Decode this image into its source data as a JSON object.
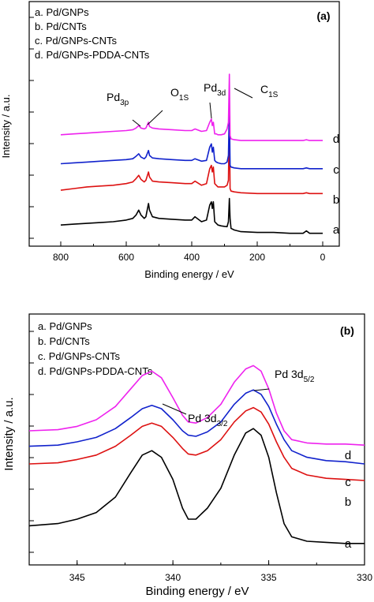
{
  "chart_data": [
    {
      "panel": "(a)",
      "type": "line",
      "xlabel": "Binding energy / eV",
      "ylabel": "Intensity / a.u.",
      "xlim": [
        800,
        0
      ],
      "x_reversed": true,
      "x_ticks": [
        "800",
        "600",
        "400",
        "200",
        "0"
      ],
      "legend": [
        "a. Pd/GNPs",
        "b. Pd/CNTs",
        "c. Pd/GNPs-CNTs",
        "d. Pd/GNPs-PDDA-CNTs"
      ],
      "legend_position": "top-left",
      "peak_labels": [
        {
          "text": "Pd",
          "sub": "3p",
          "x": 562
        },
        {
          "text": "O",
          "sub": "1S",
          "x": 531
        },
        {
          "text": "Pd",
          "sub": "3d",
          "x": 338
        },
        {
          "text": "C",
          "sub": "1S",
          "x": 285
        }
      ],
      "series": [
        {
          "name": "a",
          "color": "#000000",
          "baseline": 0.03,
          "x": [
            800,
            760,
            720,
            680,
            640,
            600,
            580,
            570,
            562,
            555,
            545,
            540,
            532,
            529,
            520,
            500,
            460,
            420,
            400,
            390,
            370,
            355,
            345,
            340,
            337,
            334,
            330,
            325,
            320,
            310,
            300,
            292,
            288,
            285,
            283,
            280,
            270,
            250,
            200,
            150,
            100,
            60,
            50,
            40,
            20,
            0
          ],
          "y": [
            0.08,
            0.085,
            0.09,
            0.095,
            0.1,
            0.11,
            0.12,
            0.14,
            0.17,
            0.14,
            0.12,
            0.13,
            0.21,
            0.17,
            0.13,
            0.12,
            0.115,
            0.11,
            0.11,
            0.13,
            0.1,
            0.11,
            0.2,
            0.22,
            0.18,
            0.22,
            0.1,
            0.09,
            0.08,
            0.075,
            0.072,
            0.07,
            0.1,
            0.24,
            0.12,
            0.06,
            0.05,
            0.04,
            0.035,
            0.035,
            0.03,
            0.03,
            0.045,
            0.03,
            0.03,
            0.03
          ]
        },
        {
          "name": "b",
          "color": "#dd1111",
          "baseline": 0.27,
          "x": [
            800,
            760,
            720,
            680,
            640,
            600,
            580,
            570,
            562,
            555,
            545,
            540,
            532,
            529,
            520,
            500,
            460,
            420,
            400,
            390,
            370,
            355,
            345,
            340,
            337,
            334,
            330,
            325,
            320,
            310,
            300,
            292,
            288,
            285,
            283,
            280,
            270,
            250,
            200,
            150,
            100,
            60,
            50,
            40,
            20,
            0
          ],
          "y": [
            0.29,
            0.3,
            0.31,
            0.315,
            0.32,
            0.33,
            0.34,
            0.36,
            0.38,
            0.355,
            0.34,
            0.35,
            0.4,
            0.37,
            0.345,
            0.34,
            0.335,
            0.33,
            0.33,
            0.345,
            0.32,
            0.33,
            0.42,
            0.44,
            0.4,
            0.43,
            0.33,
            0.32,
            0.31,
            0.31,
            0.31,
            0.32,
            0.35,
            0.75,
            0.3,
            0.285,
            0.28,
            0.275,
            0.27,
            0.27,
            0.27,
            0.27,
            0.275,
            0.27,
            0.27,
            0.27
          ]
        },
        {
          "name": "c",
          "color": "#1122cc",
          "baseline": 0.42,
          "x": [
            800,
            760,
            720,
            680,
            640,
            600,
            580,
            570,
            562,
            555,
            545,
            540,
            532,
            529,
            520,
            500,
            460,
            420,
            400,
            390,
            370,
            355,
            345,
            340,
            337,
            334,
            330,
            325,
            320,
            310,
            300,
            292,
            288,
            285,
            283,
            280,
            270,
            250,
            200,
            150,
            100,
            60,
            50,
            40,
            20,
            0
          ],
          "y": [
            0.45,
            0.455,
            0.46,
            0.465,
            0.47,
            0.475,
            0.48,
            0.495,
            0.51,
            0.49,
            0.48,
            0.49,
            0.53,
            0.5,
            0.485,
            0.48,
            0.475,
            0.47,
            0.47,
            0.48,
            0.465,
            0.47,
            0.55,
            0.57,
            0.52,
            0.55,
            0.47,
            0.46,
            0.455,
            0.45,
            0.45,
            0.46,
            0.5,
            0.8,
            0.44,
            0.43,
            0.425,
            0.42,
            0.42,
            0.42,
            0.42,
            0.42,
            0.425,
            0.42,
            0.42,
            0.42
          ]
        },
        {
          "name": "d",
          "color": "#ee22ee",
          "baseline": 0.59,
          "x": [
            800,
            760,
            720,
            680,
            640,
            600,
            580,
            570,
            562,
            555,
            545,
            540,
            532,
            529,
            520,
            500,
            460,
            420,
            400,
            390,
            370,
            355,
            345,
            340,
            337,
            334,
            330,
            325,
            320,
            310,
            300,
            292,
            288,
            285,
            283,
            280,
            270,
            250,
            200,
            150,
            100,
            60,
            50,
            40,
            20,
            0
          ],
          "y": [
            0.625,
            0.63,
            0.635,
            0.64,
            0.645,
            0.65,
            0.655,
            0.665,
            0.68,
            0.665,
            0.66,
            0.665,
            0.7,
            0.675,
            0.665,
            0.66,
            0.655,
            0.65,
            0.65,
            0.66,
            0.645,
            0.65,
            0.7,
            0.72,
            0.68,
            0.7,
            0.63,
            0.63,
            0.625,
            0.625,
            0.63,
            0.66,
            0.7,
            0.99,
            0.62,
            0.6,
            0.595,
            0.59,
            0.59,
            0.59,
            0.59,
            0.59,
            0.595,
            0.59,
            0.59,
            0.59
          ]
        }
      ],
      "series_labels": [
        "d",
        "c",
        "b",
        "a"
      ]
    },
    {
      "panel": "(b)",
      "type": "line",
      "xlabel": "Binding energy / eV",
      "ylabel": "Intensity / a.u.",
      "xlim": [
        347.5,
        330
      ],
      "x_reversed": true,
      "x_ticks": [
        "345",
        "340",
        "335",
        "330"
      ],
      "legend": [
        "a. Pd/GNPs",
        "b. Pd/CNTs",
        "c. Pd/GNPs-CNTs",
        "d. Pd/GNPs-PDDA-CNTs"
      ],
      "legend_position": "top-left",
      "peak_labels": [
        {
          "text": "Pd 3d",
          "sub": "3/2",
          "x": 341
        },
        {
          "text": "Pd 3d",
          "sub": "5/2",
          "x": 335.8
        }
      ],
      "series": [
        {
          "name": "a",
          "color": "#000000",
          "x": [
            347.5,
            346,
            345,
            344,
            343,
            342.2,
            341.6,
            341.1,
            340.6,
            340,
            339.5,
            339.2,
            338.8,
            338.2,
            337.5,
            336.8,
            336.2,
            335.8,
            335.4,
            335,
            334.6,
            334.2,
            333.8,
            333,
            332,
            331,
            330
          ],
          "y": [
            0.12,
            0.13,
            0.15,
            0.18,
            0.25,
            0.36,
            0.44,
            0.46,
            0.43,
            0.33,
            0.2,
            0.15,
            0.15,
            0.2,
            0.29,
            0.44,
            0.54,
            0.56,
            0.53,
            0.43,
            0.27,
            0.13,
            0.07,
            0.05,
            0.045,
            0.04,
            0.04
          ]
        },
        {
          "name": "b",
          "color": "#dd1111",
          "x": [
            347.5,
            346,
            345,
            344,
            343,
            342.2,
            341.6,
            341.1,
            340.6,
            340,
            339.5,
            339.2,
            338.8,
            338.2,
            337.5,
            336.8,
            336.2,
            335.8,
            335.4,
            335,
            334.6,
            334.2,
            333.8,
            333,
            332,
            331,
            330
          ],
          "y": [
            0.4,
            0.405,
            0.42,
            0.44,
            0.48,
            0.53,
            0.57,
            0.585,
            0.57,
            0.52,
            0.47,
            0.445,
            0.44,
            0.46,
            0.51,
            0.59,
            0.64,
            0.655,
            0.635,
            0.58,
            0.5,
            0.43,
            0.38,
            0.35,
            0.335,
            0.33,
            0.325
          ]
        },
        {
          "name": "c",
          "color": "#1122cc",
          "x": [
            347.5,
            346,
            345,
            344,
            343,
            342.2,
            341.6,
            341.1,
            340.6,
            340,
            339.5,
            339.2,
            338.8,
            338.2,
            337.5,
            336.8,
            336.2,
            335.8,
            335.4,
            335,
            334.6,
            334.2,
            333.8,
            333,
            332,
            331,
            330
          ],
          "y": [
            0.48,
            0.485,
            0.5,
            0.52,
            0.56,
            0.61,
            0.65,
            0.665,
            0.65,
            0.6,
            0.55,
            0.53,
            0.525,
            0.545,
            0.59,
            0.67,
            0.72,
            0.735,
            0.715,
            0.66,
            0.58,
            0.51,
            0.46,
            0.43,
            0.415,
            0.41,
            0.4
          ]
        },
        {
          "name": "d",
          "color": "#ee22ee",
          "x": [
            347.5,
            346,
            345,
            344,
            343,
            342.2,
            341.6,
            341.1,
            340.6,
            340,
            339.5,
            339.2,
            338.8,
            338.2,
            337.5,
            336.8,
            336.2,
            335.8,
            335.4,
            335,
            334.6,
            334.2,
            333.8,
            333,
            332,
            331,
            330
          ],
          "y": [
            0.55,
            0.555,
            0.57,
            0.6,
            0.66,
            0.74,
            0.8,
            0.82,
            0.79,
            0.7,
            0.62,
            0.59,
            0.585,
            0.61,
            0.67,
            0.77,
            0.83,
            0.845,
            0.82,
            0.74,
            0.63,
            0.55,
            0.51,
            0.495,
            0.49,
            0.49,
            0.485
          ]
        }
      ],
      "series_labels": [
        "d",
        "c",
        "b",
        "a"
      ]
    }
  ],
  "panel_a": {
    "label": "(a)",
    "xlabel": "Binding energy / eV",
    "ylabel": "Intensity / a.u.",
    "legend": [
      "a. Pd/GNPs",
      "b. Pd/CNTs",
      "c. Pd/GNPs-CNTs",
      "d. Pd/GNPs-PDDA-CNTs"
    ]
  },
  "panel_b": {
    "label": "(b)",
    "xlabel": "Binding energy / eV",
    "ylabel": "Intensity / a.u.",
    "legend": [
      "a. Pd/GNPs",
      "b. Pd/CNTs",
      "c. Pd/GNPs-CNTs",
      "d. Pd/GNPs-PDDA-CNTs"
    ]
  }
}
